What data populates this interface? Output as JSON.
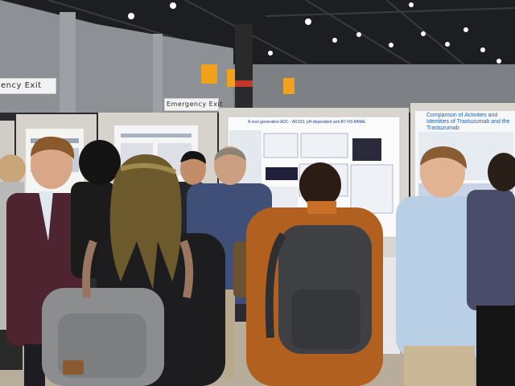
{
  "signs": {
    "exit_left": "ency Exit",
    "exit_center": "Emergency Exit"
  },
  "posters": {
    "center_title": "A next generation ADC - AR153, pH-dependent anti-B7-H3-MMAE",
    "right_title": "Comparison of Activities and Identities of Trastuzumab and the Trastuzumab"
  },
  "colors": {
    "ceiling": "#1d1e21",
    "wall": "#8d9196",
    "floor": "#b8ad9a",
    "poster_board": "#d9d6cf",
    "accent_sign": "#f0a21c"
  }
}
